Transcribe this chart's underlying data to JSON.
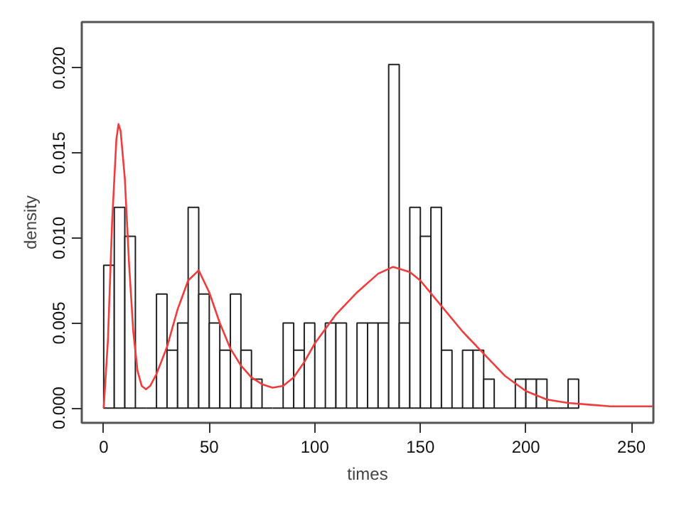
{
  "chart_data": {
    "type": "histogram",
    "xlabel": "times",
    "ylabel": "density",
    "bins": [
      0,
      5,
      10,
      15,
      20,
      25,
      30,
      35,
      40,
      45,
      50,
      55,
      60,
      65,
      70,
      75,
      80,
      85,
      90,
      95,
      100,
      105,
      110,
      115,
      120,
      125,
      130,
      135,
      140,
      145,
      150,
      155,
      160,
      165,
      170,
      175,
      180,
      185,
      190,
      195,
      200,
      205,
      210,
      215,
      220,
      225
    ],
    "values": [
      0.0084,
      0.0118,
      0.0101,
      0,
      0,
      0.0067,
      0.0034,
      0.005,
      0.0118,
      0.0067,
      0.005,
      0.0034,
      0.0067,
      0.0034,
      0.0017,
      0,
      0,
      0.005,
      0.0034,
      0.005,
      0,
      0.005,
      0.005,
      0,
      0.005,
      0.005,
      0.005,
      0.0202,
      0.005,
      0.0118,
      0.0101,
      0.0118,
      0.0034,
      0,
      0.0034,
      0.0034,
      0.0017,
      0,
      0,
      0.0017,
      0.0017,
      0.0017,
      0,
      0,
      0.0017
    ],
    "color": "#222222",
    "series": [
      {
        "type": "line",
        "color": "#f03c3c",
        "x": [
          0,
          2,
          4,
          6,
          7,
          8,
          10,
          12,
          14,
          16,
          18,
          20,
          22,
          25,
          30,
          35,
          40,
          45,
          50,
          55,
          60,
          65,
          70,
          75,
          80,
          85,
          90,
          95,
          100,
          110,
          120,
          130,
          137,
          145,
          150,
          160,
          170,
          180,
          190,
          200,
          210,
          220,
          230,
          240,
          250,
          260
        ],
        "values": [
          0,
          0.004,
          0.011,
          0.0158,
          0.0167,
          0.0163,
          0.0135,
          0.0085,
          0.0045,
          0.0022,
          0.0013,
          0.0011,
          0.0013,
          0.002,
          0.0036,
          0.0058,
          0.0075,
          0.0081,
          0.0068,
          0.005,
          0.0035,
          0.0025,
          0.0018,
          0.0014,
          0.0012,
          0.0013,
          0.0018,
          0.0027,
          0.0038,
          0.0055,
          0.0068,
          0.0079,
          0.0083,
          0.008,
          0.0075,
          0.006,
          0.0045,
          0.0032,
          0.0019,
          0.001,
          0.0005,
          0.0003,
          0.0002,
          0.0001,
          0.0001,
          0.0001
        ]
      }
    ],
    "xlim": [
      -10.4,
      260.4
    ],
    "ylim": [
      -0.00087,
      0.0227
    ],
    "xticks": [
      0,
      50,
      100,
      150,
      200,
      250
    ],
    "yticks": [
      {
        "value": 0,
        "label": "0.000"
      },
      {
        "value": 0.005,
        "label": "0.005"
      },
      {
        "value": 0.01,
        "label": "0.010"
      },
      {
        "value": 0.015,
        "label": "0.015"
      },
      {
        "value": 0.02,
        "label": "0.020"
      }
    ],
    "grid": false
  }
}
